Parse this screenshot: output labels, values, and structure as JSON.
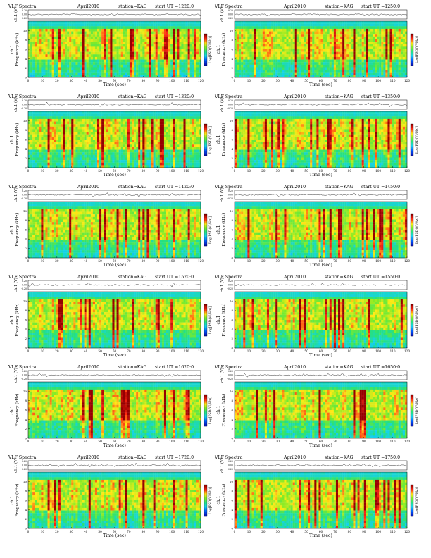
{
  "chart_data": {
    "type": "heatmap",
    "rows": 6,
    "cols": 2,
    "panels": [
      {
        "title": "VLF Spectra",
        "date": "April2010",
        "station": "station=KAG",
        "start": "start  UT =1220:0"
      },
      {
        "title": "VLF Spectra",
        "date": "April2010",
        "station": "station=KAG",
        "start": "start  UT =1250:0"
      },
      {
        "title": "VLF Spectra",
        "date": "April2010",
        "station": "station=KAG",
        "start": "start  UT =1320:0"
      },
      {
        "title": "VLF Spectra",
        "date": "April2010",
        "station": "station=KAG",
        "start": "start  UT =1350:0"
      },
      {
        "title": "VLF Spectra",
        "date": "April2010",
        "station": "station=KAG",
        "start": "start  UT =1420:0"
      },
      {
        "title": "VLF Spectra",
        "date": "April2010",
        "station": "station=KAG",
        "start": "start  UT =1450:0"
      },
      {
        "title": "VLF Spectra",
        "date": "April2010",
        "station": "station=KAG",
        "start": "start  UT =1520:0"
      },
      {
        "title": "VLF Spectra",
        "date": "April2010",
        "station": "station=KAG",
        "start": "start  UT =1550:0"
      },
      {
        "title": "VLF Spectra",
        "date": "April2010",
        "station": "station=KAG",
        "start": "start  UT =1620:0"
      },
      {
        "title": "VLF Spectra",
        "date": "April2010",
        "station": "station=KAG",
        "start": "start  UT =1650:0"
      },
      {
        "title": "VLF Spectra",
        "date": "April2010",
        "station": "station=KAG",
        "start": "start  UT =1720:0"
      },
      {
        "title": "VLF Spectra",
        "date": "April2010",
        "station": "station=KAG",
        "start": "start  UT =1750:0"
      }
    ],
    "waveform_ylabel": "ch.1 (V)",
    "waveform_ticks": [
      "0.20",
      "0.00",
      "-0.20"
    ],
    "ylabel_ch": "ch.1",
    "ylabel": "Frequency (kHz)",
    "yticks": [
      "0",
      "2",
      "4",
      "6",
      "8",
      "10"
    ],
    "ylim": [
      0,
      12
    ],
    "xlabel": "Time (sec)",
    "xticks": [
      "0",
      "10",
      "20",
      "30",
      "40",
      "50",
      "60",
      "70",
      "80",
      "90",
      "100",
      "110",
      "120"
    ],
    "xlim": [
      0,
      120
    ],
    "colorbar_label": "Log[PSD(V²/Hz)]",
    "colors": {
      "low": "#0b2cff",
      "mid": "#1fd4c8",
      "high": "#ff1a1a"
    }
  }
}
